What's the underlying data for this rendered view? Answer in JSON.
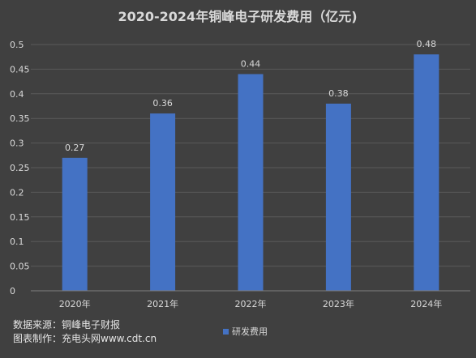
{
  "chart_data": {
    "type": "bar",
    "title": "2020-2024年铜峰电子研发费用（亿元)",
    "categories": [
      "2020年",
      "2021年",
      "2022年",
      "2023年",
      "2024年"
    ],
    "series": [
      {
        "name": "研发费用",
        "values": [
          0.27,
          0.36,
          0.44,
          0.38,
          0.48
        ]
      }
    ],
    "data_labels": [
      "0.27",
      "0.36",
      "0.44",
      "0.38",
      "0.48"
    ],
    "y_ticks": [
      "0",
      "0.05",
      "0.1",
      "0.15",
      "0.2",
      "0.25",
      "0.3",
      "0.35",
      "0.4",
      "0.45",
      "0.5"
    ],
    "ylim": [
      0,
      0.5
    ],
    "grid": true,
    "legend_position": "bottom",
    "colors": {
      "background": "#404040",
      "bar": "#4472c4",
      "text": "#d9d9d9",
      "grid": "#5a5a5a"
    }
  },
  "source_lines": [
    "数据来源：铜峰电子财报",
    "图表制作：充电头网www.cdt.cn"
  ]
}
